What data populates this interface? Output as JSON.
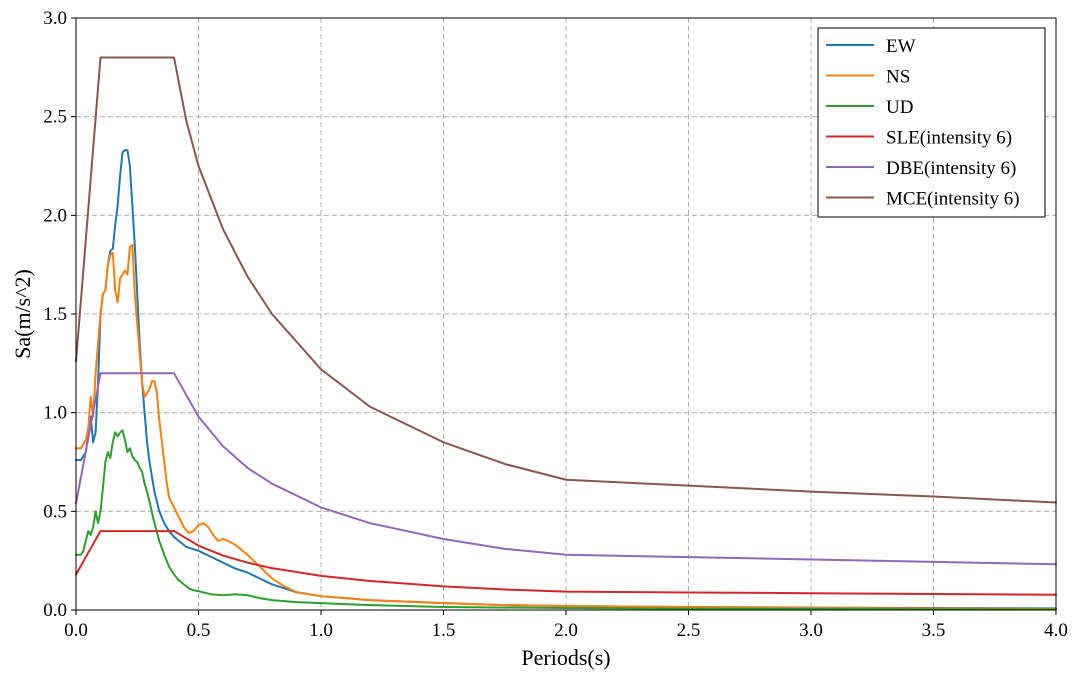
{
  "chart_data": {
    "type": "line",
    "title": "",
    "xlabel": "Periods(s)",
    "ylabel": "Sa(m/s^2)",
    "xlim": [
      0,
      4
    ],
    "ylim": [
      0,
      3
    ],
    "xticks": [
      0.0,
      0.5,
      1.0,
      1.5,
      2.0,
      2.5,
      3.0,
      3.5,
      4.0
    ],
    "xtick_labels": [
      "0.0",
      "0.5",
      "1.0",
      "1.5",
      "2.0",
      "2.5",
      "3.0",
      "3.5",
      "4.0"
    ],
    "yticks": [
      0.0,
      0.5,
      1.0,
      1.5,
      2.0,
      2.5,
      3.0
    ],
    "ytick_labels": [
      "0.0",
      "0.5",
      "1.0",
      "1.5",
      "2.0",
      "2.5",
      "3.0"
    ],
    "grid": true,
    "legend_position": "top-right",
    "series": [
      {
        "name": "EW",
        "color": "#1f77b4",
        "x": [
          0,
          0.02,
          0.04,
          0.06,
          0.07,
          0.08,
          0.09,
          0.1,
          0.11,
          0.12,
          0.13,
          0.14,
          0.15,
          0.16,
          0.17,
          0.18,
          0.19,
          0.2,
          0.21,
          0.22,
          0.23,
          0.24,
          0.25,
          0.26,
          0.27,
          0.28,
          0.29,
          0.3,
          0.32,
          0.34,
          0.36,
          0.38,
          0.4,
          0.45,
          0.5,
          0.55,
          0.6,
          0.65,
          0.7,
          0.75,
          0.8,
          0.85,
          0.9,
          1.0,
          1.1,
          1.2,
          1.3,
          1.5,
          1.75,
          2.0,
          2.5,
          3.0,
          3.5,
          4.0
        ],
        "y": [
          0.76,
          0.76,
          0.8,
          0.98,
          0.85,
          0.9,
          1.15,
          1.5,
          1.6,
          1.62,
          1.75,
          1.82,
          1.83,
          1.95,
          2.05,
          2.2,
          2.32,
          2.33,
          2.33,
          2.25,
          2.05,
          1.85,
          1.6,
          1.35,
          1.15,
          1.0,
          0.85,
          0.75,
          0.6,
          0.5,
          0.44,
          0.4,
          0.37,
          0.32,
          0.3,
          0.27,
          0.24,
          0.21,
          0.19,
          0.16,
          0.13,
          0.11,
          0.09,
          0.07,
          0.06,
          0.05,
          0.045,
          0.035,
          0.025,
          0.02,
          0.015,
          0.012,
          0.01,
          0.008
        ]
      },
      {
        "name": "NS",
        "color": "#ff7f0e",
        "x": [
          0,
          0.02,
          0.04,
          0.05,
          0.06,
          0.07,
          0.08,
          0.09,
          0.1,
          0.11,
          0.12,
          0.13,
          0.14,
          0.15,
          0.16,
          0.17,
          0.18,
          0.19,
          0.2,
          0.21,
          0.22,
          0.23,
          0.24,
          0.25,
          0.26,
          0.27,
          0.28,
          0.29,
          0.3,
          0.31,
          0.32,
          0.33,
          0.34,
          0.35,
          0.36,
          0.37,
          0.38,
          0.4,
          0.42,
          0.44,
          0.46,
          0.48,
          0.5,
          0.52,
          0.54,
          0.56,
          0.58,
          0.6,
          0.62,
          0.65,
          0.68,
          0.7,
          0.75,
          0.8,
          0.85,
          0.9,
          1.0,
          1.1,
          1.2,
          1.3,
          1.5,
          1.75,
          2.0,
          2.5,
          3.0,
          3.5,
          4.0
        ],
        "y": [
          0.82,
          0.82,
          0.86,
          0.92,
          1.08,
          0.98,
          1.2,
          1.35,
          1.5,
          1.6,
          1.62,
          1.75,
          1.8,
          1.81,
          1.62,
          1.56,
          1.68,
          1.7,
          1.72,
          1.7,
          1.84,
          1.85,
          1.6,
          1.45,
          1.3,
          1.15,
          1.08,
          1.1,
          1.12,
          1.16,
          1.16,
          1.1,
          0.96,
          0.86,
          0.75,
          0.65,
          0.57,
          0.52,
          0.47,
          0.42,
          0.39,
          0.4,
          0.43,
          0.44,
          0.42,
          0.38,
          0.35,
          0.36,
          0.35,
          0.33,
          0.3,
          0.28,
          0.22,
          0.16,
          0.12,
          0.09,
          0.07,
          0.06,
          0.05,
          0.045,
          0.035,
          0.025,
          0.02,
          0.015,
          0.01,
          0.008,
          0.006
        ]
      },
      {
        "name": "UD",
        "color": "#2ca02c",
        "x": [
          0,
          0.02,
          0.03,
          0.04,
          0.05,
          0.06,
          0.07,
          0.08,
          0.09,
          0.1,
          0.11,
          0.12,
          0.13,
          0.14,
          0.15,
          0.16,
          0.17,
          0.18,
          0.19,
          0.2,
          0.21,
          0.22,
          0.23,
          0.24,
          0.25,
          0.26,
          0.27,
          0.28,
          0.29,
          0.3,
          0.32,
          0.34,
          0.36,
          0.38,
          0.4,
          0.42,
          0.44,
          0.46,
          0.48,
          0.5,
          0.55,
          0.6,
          0.65,
          0.7,
          0.75,
          0.8,
          0.9,
          1.0,
          1.2,
          1.5,
          2.0,
          2.5,
          3.0,
          3.5,
          4.0
        ],
        "y": [
          0.28,
          0.28,
          0.3,
          0.35,
          0.4,
          0.38,
          0.42,
          0.5,
          0.44,
          0.5,
          0.62,
          0.75,
          0.8,
          0.77,
          0.85,
          0.9,
          0.88,
          0.9,
          0.91,
          0.86,
          0.8,
          0.82,
          0.78,
          0.76,
          0.75,
          0.72,
          0.7,
          0.64,
          0.6,
          0.55,
          0.44,
          0.35,
          0.28,
          0.22,
          0.18,
          0.15,
          0.13,
          0.11,
          0.1,
          0.095,
          0.08,
          0.075,
          0.08,
          0.075,
          0.06,
          0.05,
          0.04,
          0.035,
          0.025,
          0.015,
          0.01,
          0.007,
          0.005,
          0.004,
          0.003
        ]
      },
      {
        "name": "SLE(intensity 6)",
        "color": "#d62728",
        "x": [
          0,
          0.1,
          0.4,
          0.5,
          0.6,
          0.7,
          0.8,
          1.0,
          1.2,
          1.5,
          1.75,
          2.0,
          2.5,
          3.0,
          3.5,
          4.0
        ],
        "y": [
          0.18,
          0.4,
          0.4,
          0.326,
          0.276,
          0.24,
          0.212,
          0.173,
          0.147,
          0.12,
          0.104,
          0.093,
          0.089,
          0.085,
          0.081,
          0.077
        ]
      },
      {
        "name": "DBE(intensity 6)",
        "color": "#9467bd",
        "x": [
          0,
          0.1,
          0.4,
          0.5,
          0.6,
          0.7,
          0.8,
          1.0,
          1.2,
          1.5,
          1.75,
          2.0,
          2.5,
          3.0,
          3.5,
          4.0
        ],
        "y": [
          0.54,
          1.2,
          1.2,
          0.98,
          0.83,
          0.72,
          0.64,
          0.52,
          0.44,
          0.36,
          0.31,
          0.28,
          0.268,
          0.256,
          0.244,
          0.232
        ]
      },
      {
        "name": "MCE(intensity 6)",
        "color": "#8c564b",
        "x": [
          0,
          0.1,
          0.4,
          0.45,
          0.5,
          0.6,
          0.7,
          0.8,
          1.0,
          1.2,
          1.5,
          1.75,
          2.0,
          2.5,
          3.0,
          3.5,
          4.0
        ],
        "y": [
          1.26,
          2.8,
          2.8,
          2.48,
          2.25,
          1.93,
          1.69,
          1.5,
          1.22,
          1.03,
          0.85,
          0.74,
          0.66,
          0.63,
          0.6,
          0.575,
          0.545
        ]
      }
    ]
  }
}
